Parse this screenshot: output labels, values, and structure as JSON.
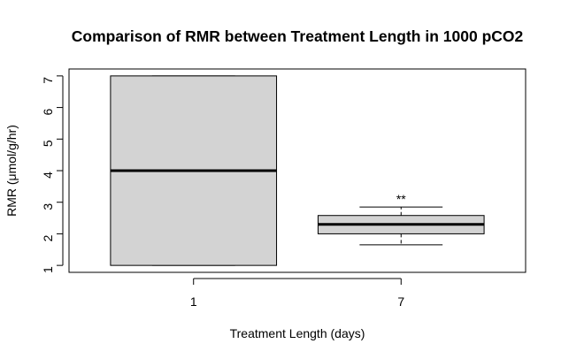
{
  "chart_data": {
    "type": "box",
    "title": "Comparison of RMR between Treatment Length in 1000 pCO2",
    "xlabel": "Treatment Length (days)",
    "ylabel": "RMR (μmol/g/hr)",
    "ylim": [
      0.78,
      7.22
    ],
    "yticks": [
      1,
      2,
      3,
      4,
      5,
      6,
      7
    ],
    "categories": [
      "1",
      "7"
    ],
    "boxes": [
      {
        "category": "1",
        "whisker_low": 1.0,
        "q1": 1.0,
        "median": 4.0,
        "q3": 7.0,
        "whisker_high": 7.0,
        "annotation": ""
      },
      {
        "category": "7",
        "whisker_low": 1.65,
        "q1": 2.0,
        "median": 2.3,
        "q3": 2.58,
        "whisker_high": 2.85,
        "annotation": "**"
      }
    ],
    "box_fill": "#d3d3d3",
    "grid": false,
    "legend": "none"
  }
}
